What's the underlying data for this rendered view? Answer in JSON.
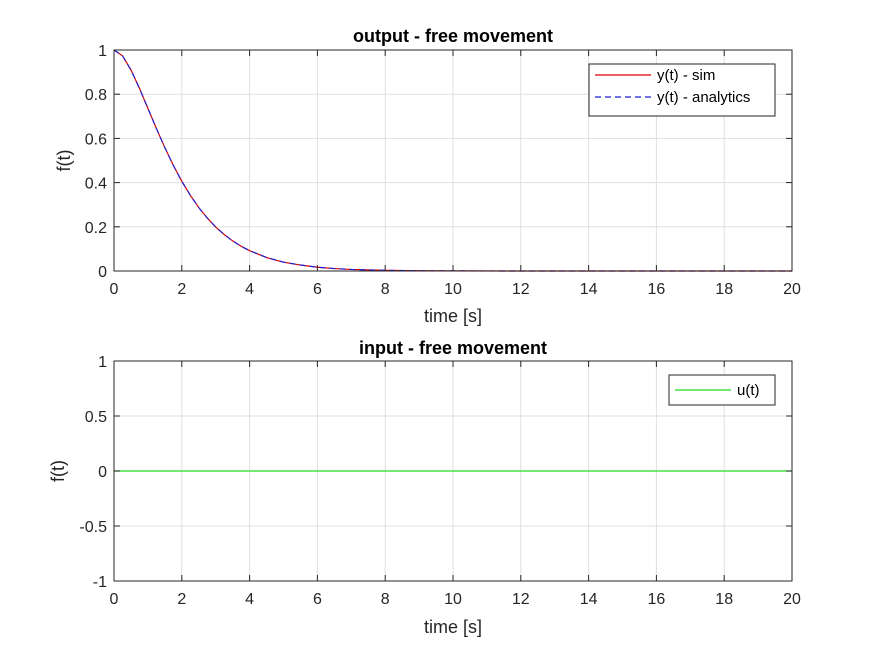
{
  "chart_data": [
    {
      "type": "line",
      "title": "output - free movement",
      "xlabel": "time [s]",
      "ylabel": "f(t)",
      "xlim": [
        0,
        20
      ],
      "ylim": [
        0,
        1
      ],
      "xticks": [
        "0",
        "2",
        "4",
        "6",
        "8",
        "10",
        "12",
        "14",
        "16",
        "18",
        "20"
      ],
      "yticks": [
        "0",
        "0.2",
        "0.4",
        "0.6",
        "0.8",
        "1"
      ],
      "grid": true,
      "legend_position": "top-right",
      "x": [
        0,
        0.25,
        0.5,
        0.75,
        1,
        1.25,
        1.5,
        1.75,
        2,
        2.25,
        2.5,
        2.75,
        3,
        3.25,
        3.5,
        3.75,
        4,
        4.5,
        5,
        5.5,
        6,
        6.5,
        7,
        8,
        9,
        10,
        12,
        14,
        16,
        18,
        20
      ],
      "series": [
        {
          "name": "y(t) - sim",
          "color": "#e00000",
          "style": "solid",
          "values": [
            1,
            0.974,
            0.91,
            0.827,
            0.736,
            0.645,
            0.558,
            0.478,
            0.406,
            0.343,
            0.287,
            0.24,
            0.199,
            0.165,
            0.136,
            0.112,
            0.092,
            0.061,
            0.04,
            0.027,
            0.017,
            0.011,
            0.007,
            0.003,
            0.001,
            0.0005,
            0,
            0,
            0,
            0,
            0
          ]
        },
        {
          "name": "y(t) - analytics",
          "color": "#1f1fd6",
          "style": "dashed",
          "values": [
            1,
            0.974,
            0.91,
            0.827,
            0.736,
            0.645,
            0.558,
            0.478,
            0.406,
            0.343,
            0.287,
            0.24,
            0.199,
            0.165,
            0.136,
            0.112,
            0.092,
            0.061,
            0.04,
            0.027,
            0.017,
            0.011,
            0.007,
            0.003,
            0.001,
            0.0005,
            0,
            0,
            0,
            0,
            0
          ]
        }
      ]
    },
    {
      "type": "line",
      "title": "input - free movement",
      "xlabel": "time [s]",
      "ylabel": "f(t)",
      "xlim": [
        0,
        20
      ],
      "ylim": [
        -1,
        1
      ],
      "xticks": [
        "0",
        "2",
        "4",
        "6",
        "8",
        "10",
        "12",
        "14",
        "16",
        "18",
        "20"
      ],
      "yticks": [
        "-1",
        "-0.5",
        "0",
        "0.5",
        "1"
      ],
      "grid": true,
      "legend_position": "top-right",
      "x": [
        0,
        20
      ],
      "series": [
        {
          "name": "u(t)",
          "color": "#22dd22",
          "style": "solid",
          "values": [
            0,
            0
          ]
        }
      ]
    }
  ]
}
